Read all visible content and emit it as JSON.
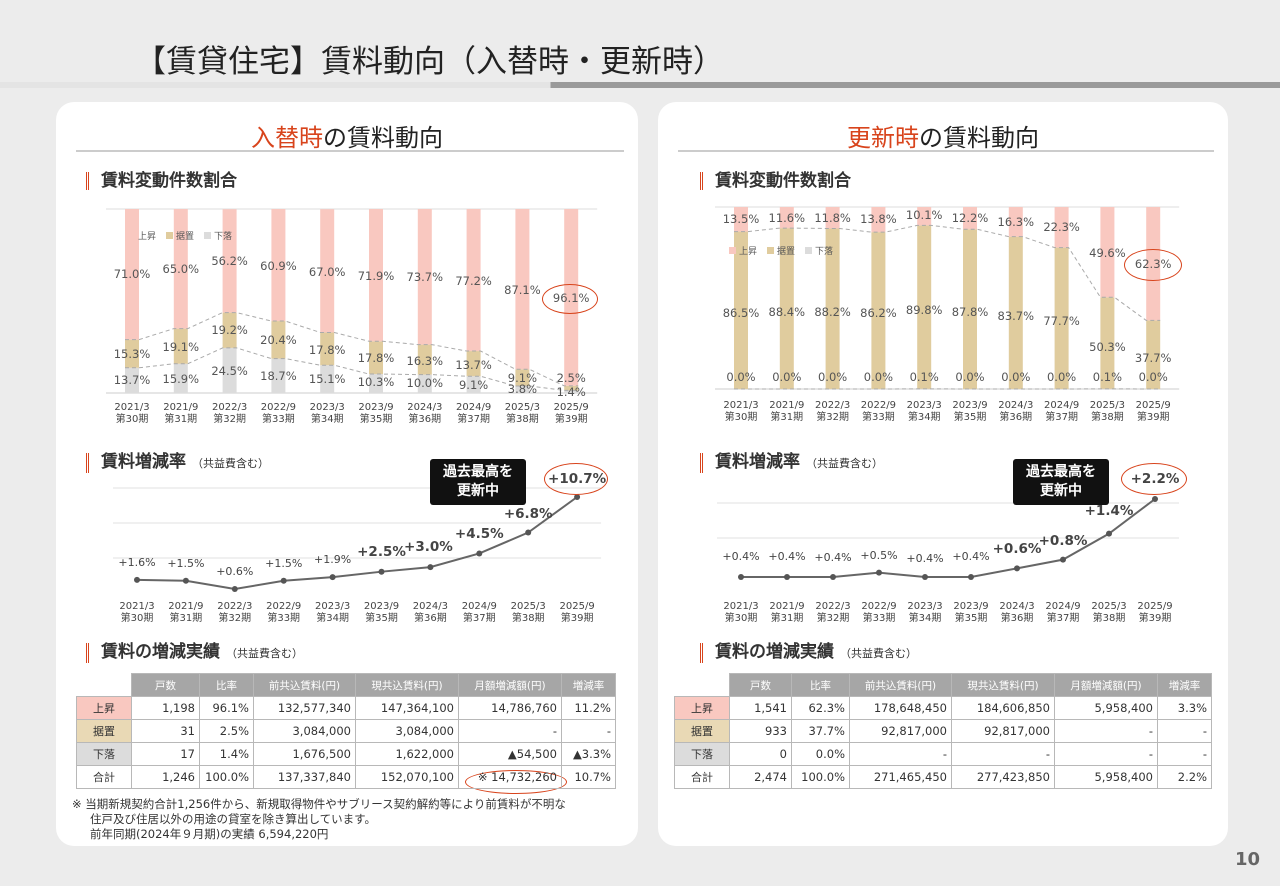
{
  "page": {
    "title": "【賃貸住宅】賃料動向（入替時・更新時）",
    "page_number": "10"
  },
  "colors": {
    "up": "#f9c8c0",
    "flat": "#e0cc9e",
    "down": "#dcdcdc",
    "line": "#666666",
    "accent": "#d8441c"
  },
  "periods": [
    [
      "2021/3",
      "第30期"
    ],
    [
      "2021/9",
      "第31期"
    ],
    [
      "2022/3",
      "第32期"
    ],
    [
      "2022/9",
      "第33期"
    ],
    [
      "2023/3",
      "第34期"
    ],
    [
      "2023/9",
      "第35期"
    ],
    [
      "2024/3",
      "第36期"
    ],
    [
      "2024/9",
      "第37期"
    ],
    [
      "2025/3",
      "第38期"
    ],
    [
      "2025/9",
      "第39期"
    ]
  ],
  "legend": {
    "up": "上昇",
    "flat": "据置",
    "down": "下落"
  },
  "table_headers": [
    "戸数",
    "比率",
    "前共込賃料(円)",
    "現共込賃料(円)",
    "月額増減額(円)",
    "増減率"
  ],
  "left": {
    "title_accent": "入替時",
    "title_rest": "の賃料動向",
    "sec1": "賃料変動件数割合",
    "sec2": "賃料増減率",
    "sec2_sub": "（共益費含む）",
    "sec3": "賃料の増減実績",
    "sec3_sub": "（共益費含む）",
    "callout": [
      "過去最高を",
      "更新中"
    ],
    "table_rows": [
      {
        "label": "上昇",
        "cls": "up",
        "cells": [
          "1,198",
          "96.1%",
          "132,577,340",
          "147,364,100",
          "14,786,760",
          "11.2%"
        ]
      },
      {
        "label": "据置",
        "cls": "fl",
        "cells": [
          "31",
          "2.5%",
          "3,084,000",
          "3,084,000",
          "-",
          "-"
        ]
      },
      {
        "label": "下落",
        "cls": "dn",
        "cells": [
          "17",
          "1.4%",
          "1,676,500",
          "1,622,000",
          "▲54,500",
          "▲3.3%"
        ]
      },
      {
        "label": "合計",
        "cls": "",
        "cells": [
          "1,246",
          "100.0%",
          "137,337,840",
          "152,070,100",
          "※ 14,732,260",
          "10.7%"
        ]
      }
    ]
  },
  "right": {
    "title_accent": "更新時",
    "title_rest": "の賃料動向",
    "sec1": "賃料変動件数割合",
    "sec2": "賃料増減率",
    "sec2_sub": "（共益費含む）",
    "sec3": "賃料の増減実績",
    "sec3_sub": "（共益費含む）",
    "callout": [
      "過去最高を",
      "更新中"
    ],
    "table_rows": [
      {
        "label": "上昇",
        "cls": "up",
        "cells": [
          "1,541",
          "62.3%",
          "178,648,450",
          "184,606,850",
          "5,958,400",
          "3.3%"
        ]
      },
      {
        "label": "据置",
        "cls": "fl",
        "cells": [
          "933",
          "37.7%",
          "92,817,000",
          "92,817,000",
          "-",
          "-"
        ]
      },
      {
        "label": "下落",
        "cls": "dn",
        "cells": [
          "0",
          "0.0%",
          "-",
          "-",
          "-",
          "-"
        ]
      },
      {
        "label": "合計",
        "cls": "",
        "cells": [
          "2,474",
          "100.0%",
          "271,465,450",
          "277,423,850",
          "5,958,400",
          "2.2%"
        ]
      }
    ]
  },
  "notes": [
    "※ 当期新規契約合計1,256件から、新規取得物件やサブリース契約解約等により前賃料が不明な",
    "住戸及び住居以外の用途の貸室を除き算出しています。",
    "前年同期(2024年９月期)の実績 6,594,220円"
  ],
  "chart_data": [
    {
      "id": "left-stack",
      "type": "bar",
      "stacked": true,
      "categories": [
        "2021/3 第30期",
        "2021/9 第31期",
        "2022/3 第32期",
        "2022/9 第33期",
        "2023/3 第34期",
        "2023/9 第35期",
        "2024/3 第36期",
        "2024/9 第37期",
        "2025/3 第38期",
        "2025/9 第39期"
      ],
      "series": [
        {
          "name": "上昇",
          "values": [
            71.0,
            65.0,
            56.2,
            60.9,
            67.0,
            71.9,
            73.7,
            77.2,
            87.1,
            96.1
          ]
        },
        {
          "name": "据置",
          "values": [
            15.3,
            19.1,
            19.2,
            20.4,
            17.8,
            17.8,
            16.3,
            13.7,
            9.1,
            2.5
          ]
        },
        {
          "name": "下落",
          "values": [
            13.7,
            15.9,
            24.5,
            18.7,
            15.1,
            10.3,
            10.0,
            9.1,
            3.8,
            1.4
          ]
        }
      ],
      "ylim": [
        0,
        100
      ],
      "legend_position": "top-left"
    },
    {
      "id": "left-line",
      "type": "line",
      "categories": [
        "2021/3 第30期",
        "2021/9 第31期",
        "2022/3 第32期",
        "2022/9 第33期",
        "2023/3 第34期",
        "2023/9 第35期",
        "2024/3 第36期",
        "2024/9 第37期",
        "2025/3 第38期",
        "2025/9 第39期"
      ],
      "values": [
        1.6,
        1.5,
        0.6,
        1.5,
        1.9,
        2.5,
        3.0,
        4.5,
        6.8,
        10.7
      ],
      "labels": [
        "+1.6%",
        "+1.5%",
        "+0.6%",
        "+1.5%",
        "+1.9%",
        "+2.5%",
        "+3.0%",
        "+4.5%",
        "+6.8%",
        "+10.7%"
      ],
      "grid": true
    },
    {
      "id": "right-stack",
      "type": "bar",
      "stacked": true,
      "categories": [
        "2021/3 第30期",
        "2021/9 第31期",
        "2022/3 第32期",
        "2022/9 第33期",
        "2023/3 第34期",
        "2023/9 第35期",
        "2024/3 第36期",
        "2024/9 第37期",
        "2025/3 第38期",
        "2025/9 第39期"
      ],
      "series": [
        {
          "name": "上昇",
          "values": [
            13.5,
            11.6,
            11.8,
            13.8,
            10.1,
            12.2,
            16.3,
            22.3,
            49.6,
            62.3
          ]
        },
        {
          "name": "据置",
          "values": [
            86.5,
            88.4,
            88.2,
            86.2,
            89.8,
            87.8,
            83.7,
            77.7,
            50.3,
            37.7
          ]
        },
        {
          "name": "下落",
          "values": [
            0.0,
            0.0,
            0.0,
            0.0,
            0.1,
            0.0,
            0.0,
            0.0,
            0.1,
            0.0
          ]
        }
      ],
      "ylim": [
        0,
        100
      ],
      "legend_position": "top-left"
    },
    {
      "id": "right-line",
      "type": "line",
      "categories": [
        "2021/3 第30期",
        "2021/9 第31期",
        "2022/3 第32期",
        "2022/9 第33期",
        "2023/3 第34期",
        "2023/9 第35期",
        "2024/3 第36期",
        "2024/9 第37期",
        "2025/3 第38期",
        "2025/9 第39期"
      ],
      "values": [
        0.4,
        0.4,
        0.4,
        0.5,
        0.4,
        0.4,
        0.6,
        0.8,
        1.4,
        2.2
      ],
      "labels": [
        "+0.4%",
        "+0.4%",
        "+0.4%",
        "+0.5%",
        "+0.4%",
        "+0.4%",
        "+0.6%",
        "+0.8%",
        "+1.4%",
        "+2.2%"
      ],
      "grid": true
    }
  ]
}
